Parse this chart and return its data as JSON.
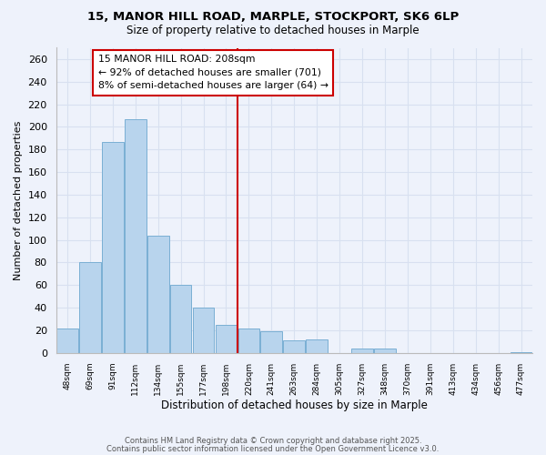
{
  "title_line1": "15, MANOR HILL ROAD, MARPLE, STOCKPORT, SK6 6LP",
  "title_line2": "Size of property relative to detached houses in Marple",
  "xlabel": "Distribution of detached houses by size in Marple",
  "ylabel": "Number of detached properties",
  "bar_labels": [
    "48sqm",
    "69sqm",
    "91sqm",
    "112sqm",
    "134sqm",
    "155sqm",
    "177sqm",
    "198sqm",
    "220sqm",
    "241sqm",
    "263sqm",
    "284sqm",
    "305sqm",
    "327sqm",
    "348sqm",
    "370sqm",
    "391sqm",
    "413sqm",
    "434sqm",
    "456sqm",
    "477sqm"
  ],
  "bar_values": [
    22,
    80,
    187,
    207,
    104,
    60,
    40,
    25,
    22,
    19,
    11,
    12,
    0,
    4,
    4,
    0,
    0,
    0,
    0,
    0,
    1
  ],
  "bar_color": "#b8d4ed",
  "bar_edge_color": "#7aafd4",
  "vline_color": "#cc0000",
  "annotation_title": "15 MANOR HILL ROAD: 208sqm",
  "annotation_line1": "← 92% of detached houses are smaller (701)",
  "annotation_line2": "8% of semi-detached houses are larger (64) →",
  "annotation_box_color": "#ffffff",
  "annotation_box_edge": "#cc0000",
  "ylim": [
    0,
    270
  ],
  "yticks": [
    0,
    20,
    40,
    60,
    80,
    100,
    120,
    140,
    160,
    180,
    200,
    220,
    240,
    260
  ],
  "footnote1": "Contains HM Land Registry data © Crown copyright and database right 2025.",
  "footnote2": "Contains public sector information licensed under the Open Government Licence v3.0.",
  "bg_color": "#eef2fb",
  "grid_color": "#d8e0f0"
}
